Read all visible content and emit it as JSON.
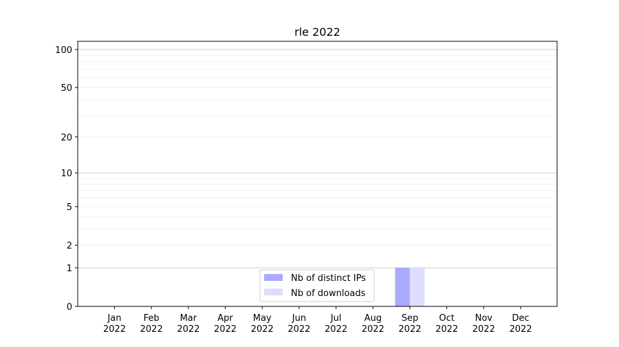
{
  "chart_data": {
    "type": "bar",
    "title": "rle 2022",
    "xlabel": "",
    "ylabel": "",
    "categories": [
      "Jan\n2022",
      "Feb\n2022",
      "Mar\n2022",
      "Apr\n2022",
      "May\n2022",
      "Jun\n2022",
      "Jul\n2022",
      "Aug\n2022",
      "Sep\n2022",
      "Oct\n2022",
      "Nov\n2022",
      "Dec\n2022"
    ],
    "series": [
      {
        "name": "Nb of distinct IPs",
        "color": "#aaaaff",
        "values": [
          0,
          0,
          0,
          0,
          0,
          0,
          0,
          0,
          1,
          0,
          0,
          0
        ]
      },
      {
        "name": "Nb of downloads",
        "color": "#ddddff",
        "values": [
          0,
          0,
          0,
          0,
          0,
          0,
          0,
          0,
          1,
          0,
          0,
          0
        ]
      }
    ],
    "yscale": "log10(1+y)",
    "yticks": [
      0,
      1,
      2,
      5,
      10,
      20,
      50,
      100
    ],
    "ylim": [
      0,
      116
    ],
    "grid": true,
    "legend": "lower-center"
  }
}
